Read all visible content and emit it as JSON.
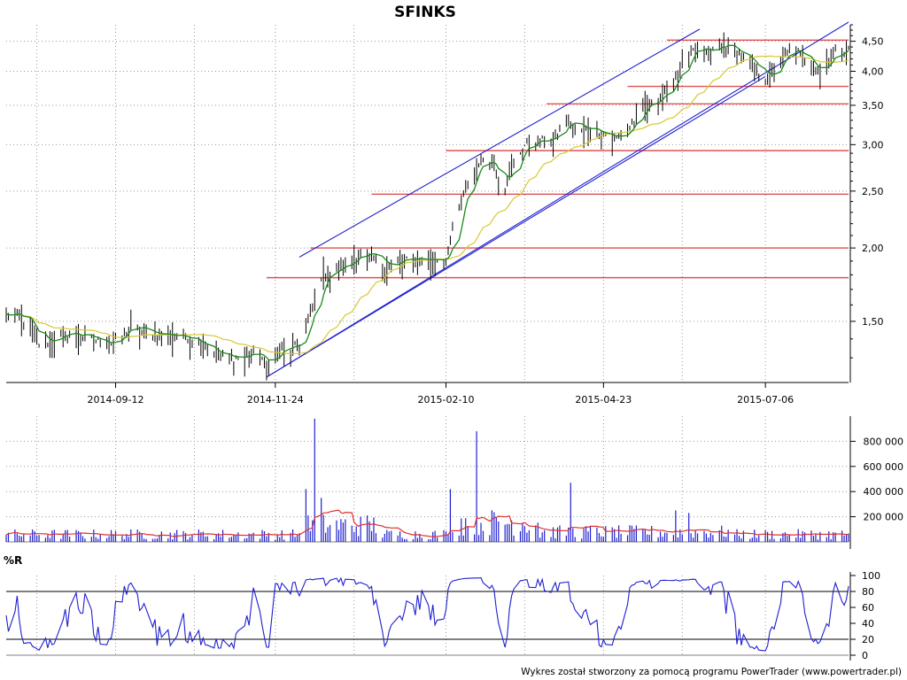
{
  "title": "SFINKS",
  "footer": "Wykres został stworzony za pomocą programu PowerTrader (www.powertrader.pl)",
  "colors": {
    "price_bars": "#000000",
    "ma_short": "#1a8a1a",
    "ma_long": "#d8c830",
    "channel": "#1f1fd0",
    "resistance": "#e05050",
    "volume_bars": "#1f1fd0",
    "volume_ma": "#e03030",
    "willr": "#1f1fd0",
    "grid": "#9a9a9a"
  },
  "chart_data": [
    {
      "type": "ohlc",
      "title": "SFINKS",
      "scale": "log",
      "ylim": [
        1.18,
        4.8
      ],
      "y_ticks": [
        "4,50",
        "4,00",
        "3,50",
        "3,00",
        "2,50",
        "2,00",
        "1,50"
      ],
      "y_tick_values": [
        4.5,
        4.0,
        3.5,
        3.0,
        2.5,
        2.0,
        1.5
      ],
      "x_range": [
        "2014-07-24",
        "2015-08-13"
      ],
      "x_ticks": [
        "2014-09-12",
        "2014-11-24",
        "2015-02-10",
        "2015-04-23",
        "2015-07-06"
      ],
      "close_path": [
        [
          "2014-07-24",
          1.54
        ],
        [
          "2014-07-30",
          1.53
        ],
        [
          "2014-08-04",
          1.47
        ],
        [
          "2014-08-08",
          1.38
        ],
        [
          "2014-08-14",
          1.4
        ],
        [
          "2014-08-21",
          1.43
        ],
        [
          "2014-08-28",
          1.42
        ],
        [
          "2014-09-04",
          1.39
        ],
        [
          "2014-09-10",
          1.38
        ],
        [
          "2014-09-15",
          1.42
        ],
        [
          "2014-09-19",
          1.48
        ],
        [
          "2014-09-25",
          1.44
        ],
        [
          "2014-10-02",
          1.43
        ],
        [
          "2014-10-09",
          1.42
        ],
        [
          "2014-10-16",
          1.41
        ],
        [
          "2014-10-22",
          1.38
        ],
        [
          "2014-10-28",
          1.32
        ],
        [
          "2014-11-03",
          1.3
        ],
        [
          "2014-11-10",
          1.31
        ],
        [
          "2014-11-17",
          1.33
        ],
        [
          "2014-11-20",
          1.24
        ],
        [
          "2014-11-24",
          1.34
        ],
        [
          "2014-12-01",
          1.35
        ],
        [
          "2014-12-05",
          1.37
        ],
        [
          "2014-12-10",
          1.55
        ],
        [
          "2014-12-15",
          1.8
        ],
        [
          "2014-12-20",
          1.83
        ],
        [
          "2014-12-26",
          1.87
        ],
        [
          "2015-01-01",
          1.96
        ],
        [
          "2015-01-07",
          1.93
        ],
        [
          "2015-01-14",
          1.87
        ],
        [
          "2015-01-21",
          1.9
        ],
        [
          "2015-01-28",
          1.92
        ],
        [
          "2015-02-04",
          1.91
        ],
        [
          "2015-02-10",
          1.93
        ],
        [
          "2015-02-14",
          2.2
        ],
        [
          "2015-02-20",
          2.6
        ],
        [
          "2015-02-26",
          2.84
        ],
        [
          "2015-03-04",
          2.78
        ],
        [
          "2015-03-08",
          2.47
        ],
        [
          "2015-03-12",
          2.78
        ],
        [
          "2015-03-18",
          3.0
        ],
        [
          "2015-03-25",
          3.05
        ],
        [
          "2015-04-01",
          3.08
        ],
        [
          "2015-04-06",
          3.35
        ],
        [
          "2015-04-11",
          3.15
        ],
        [
          "2015-04-17",
          3.22
        ],
        [
          "2015-04-23",
          3.14
        ],
        [
          "2015-04-28",
          3.07
        ],
        [
          "2015-05-04",
          3.18
        ],
        [
          "2015-05-10",
          3.44
        ],
        [
          "2015-05-16",
          3.58
        ],
        [
          "2015-05-22",
          3.7
        ],
        [
          "2015-05-28",
          4.05
        ],
        [
          "2015-06-03",
          4.35
        ],
        [
          "2015-06-10",
          4.3
        ],
        [
          "2015-06-16",
          4.45
        ],
        [
          "2015-06-22",
          4.35
        ],
        [
          "2015-06-28",
          4.15
        ],
        [
          "2015-07-03",
          3.98
        ],
        [
          "2015-07-06",
          3.9
        ],
        [
          "2015-07-10",
          4.02
        ],
        [
          "2015-07-15",
          4.3
        ],
        [
          "2015-07-20",
          4.35
        ],
        [
          "2015-07-26",
          4.1
        ],
        [
          "2015-08-01",
          4.05
        ],
        [
          "2015-08-07",
          4.35
        ],
        [
          "2015-08-13",
          4.35
        ]
      ],
      "channel_lines": [
        {
          "from": [
            "2014-11-20",
            1.2
          ],
          "to": [
            "2015-06-06",
            4.7
          ]
        },
        {
          "from": [
            "2014-12-05",
            1.93
          ],
          "to": [
            "2015-06-06",
            4.7
          ],
          "offset": "upper",
          "note_from_end": [
            "2015-08-13",
            5.6
          ]
        },
        {
          "from": [
            "2014-11-20",
            1.2
          ],
          "to": [
            "2015-08-13",
            4.85
          ]
        }
      ],
      "horizontal_levels": [
        {
          "value": 4.52,
          "from": "2015-05-22"
        },
        {
          "value": 3.77,
          "from": "2015-05-04"
        },
        {
          "value": 3.52,
          "from": "2015-03-28"
        },
        {
          "value": 2.93,
          "from": "2015-02-10"
        },
        {
          "value": 2.47,
          "from": "2015-01-07"
        },
        {
          "value": 2.0,
          "from": "2014-12-10"
        },
        {
          "value": 1.78,
          "from": "2014-11-20"
        }
      ]
    },
    {
      "type": "bar",
      "title": "Volume",
      "ylim": [
        0,
        1000000
      ],
      "y_ticks": [
        "800 000",
        "600 000",
        "400 000",
        "200 000"
      ],
      "y_tick_values": [
        800000,
        600000,
        400000,
        200000
      ],
      "spikes": [
        [
          "2014-12-08",
          420000
        ],
        [
          "2014-12-12",
          980000
        ],
        [
          "2014-12-15",
          350000
        ],
        [
          "2015-02-12",
          420000
        ],
        [
          "2015-02-14",
          910000
        ],
        [
          "2015-02-24",
          880000
        ],
        [
          "2015-04-08",
          470000
        ],
        [
          "2015-05-26",
          250000
        ],
        [
          "2015-06-01",
          230000
        ]
      ],
      "baseline_level": 60000,
      "moving_average_peaks": [
        [
          "2014-12-20",
          280000
        ],
        [
          "2015-02-26",
          330000
        ],
        [
          "2015-06-10",
          130000
        ]
      ]
    },
    {
      "type": "line",
      "title": "%R",
      "ylim": [
        0,
        100
      ],
      "y_ticks": [
        "100",
        "80",
        "60",
        "40",
        "20",
        "0"
      ],
      "y_tick_values": [
        100,
        80,
        60,
        40,
        20,
        0
      ],
      "reference_lines": [
        80,
        20
      ]
    }
  ]
}
